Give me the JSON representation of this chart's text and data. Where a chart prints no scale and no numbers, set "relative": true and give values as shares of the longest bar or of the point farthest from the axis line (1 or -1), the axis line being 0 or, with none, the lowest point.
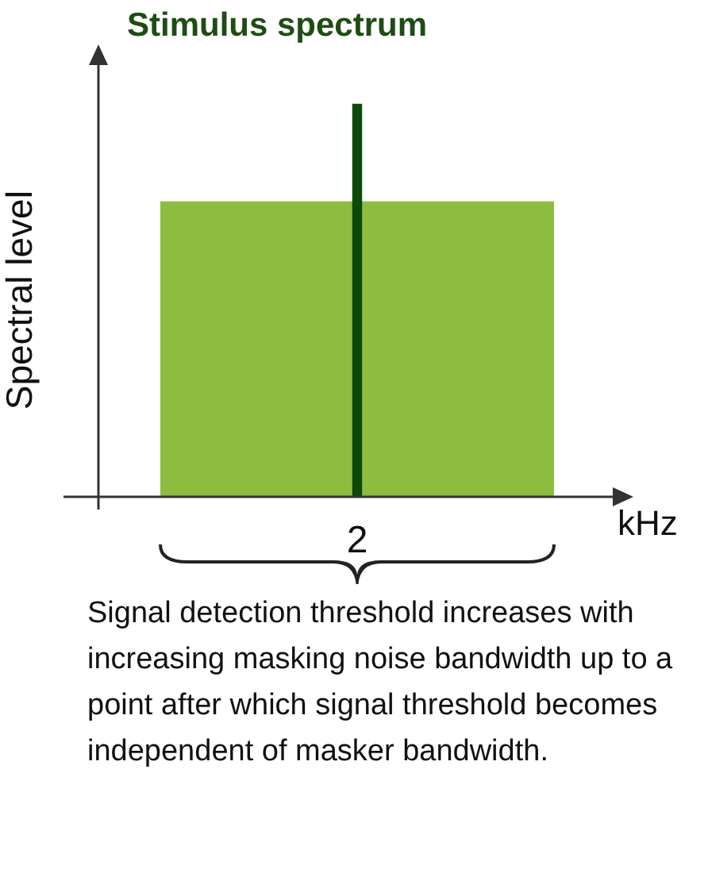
{
  "chart_data": {
    "type": "bar",
    "title": "Stimulus spectrum",
    "xlabel": "kHz",
    "ylabel": "Spectral level",
    "relative": true,
    "categories": [
      "2"
    ],
    "series": [
      {
        "color": "#0b4a0b",
        "values": [
          1
        ]
      },
      {
        "color": "#8dbd3e",
        "values": [
          0.75
        ]
      }
    ],
    "annotations": [
      "Signal detection threshold increases with increasing masking noise bandwidth up to a point after which signal threshold becomes independent of masker bandwidth."
    ]
  }
}
